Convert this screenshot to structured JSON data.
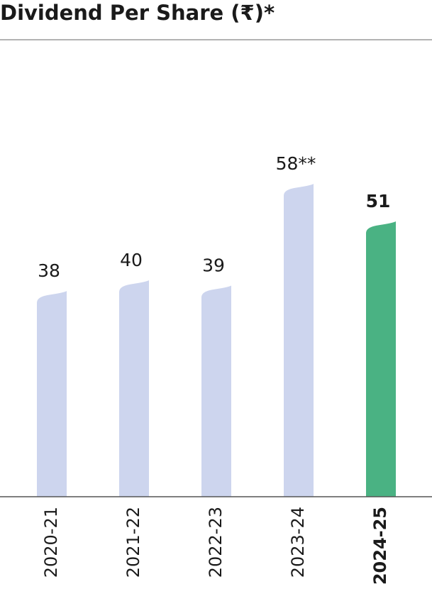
{
  "chart_data": {
    "type": "bar",
    "title": "Dividend Per Share (₹)*",
    "categories": [
      "2020-21",
      "2021-22",
      "2022-23",
      "2023-24",
      "2024-25"
    ],
    "values": [
      38,
      40,
      39,
      58,
      51
    ],
    "value_labels": [
      "38",
      "40",
      "39",
      "58**",
      "51"
    ],
    "colors": [
      "#cdd5ee",
      "#cdd5ee",
      "#cdd5ee",
      "#cdd5ee",
      "#4ab283"
    ],
    "bold": [
      false,
      false,
      false,
      false,
      true
    ]
  }
}
